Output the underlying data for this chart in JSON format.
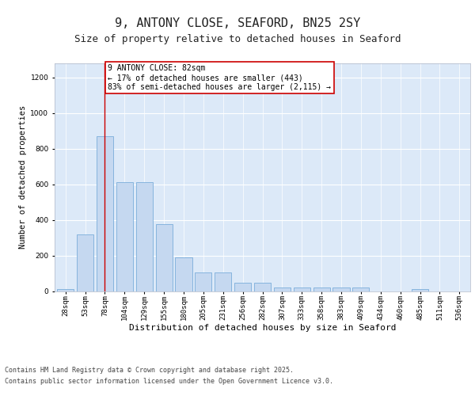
{
  "title": "9, ANTONY CLOSE, SEAFORD, BN25 2SY",
  "subtitle": "Size of property relative to detached houses in Seaford",
  "xlabel": "Distribution of detached houses by size in Seaford",
  "ylabel": "Number of detached properties",
  "categories": [
    "28sqm",
    "53sqm",
    "78sqm",
    "104sqm",
    "129sqm",
    "155sqm",
    "180sqm",
    "205sqm",
    "231sqm",
    "256sqm",
    "282sqm",
    "307sqm",
    "333sqm",
    "358sqm",
    "383sqm",
    "409sqm",
    "434sqm",
    "460sqm",
    "485sqm",
    "511sqm",
    "536sqm"
  ],
  "values": [
    12,
    320,
    870,
    610,
    610,
    375,
    190,
    105,
    105,
    47,
    47,
    20,
    20,
    20,
    20,
    20,
    0,
    0,
    12,
    0,
    0
  ],
  "bar_color": "#c5d8f0",
  "bar_edge_color": "#7aadda",
  "highlight_bar_index": 2,
  "highlight_line_color": "#cc0000",
  "annotation_text": "9 ANTONY CLOSE: 82sqm\n← 17% of detached houses are smaller (443)\n83% of semi-detached houses are larger (2,115) →",
  "annotation_box_color": "#ffffff",
  "annotation_box_edge_color": "#cc0000",
  "ylim": [
    0,
    1280
  ],
  "yticks": [
    0,
    200,
    400,
    600,
    800,
    1000,
    1200
  ],
  "fig_bg_color": "#ffffff",
  "plot_bg_color": "#dce9f8",
  "footer_line1": "Contains HM Land Registry data © Crown copyright and database right 2025.",
  "footer_line2": "Contains public sector information licensed under the Open Government Licence v3.0.",
  "title_fontsize": 11,
  "subtitle_fontsize": 9,
  "xlabel_fontsize": 8,
  "ylabel_fontsize": 7.5,
  "tick_fontsize": 6.5,
  "annotation_fontsize": 7,
  "footer_fontsize": 6
}
